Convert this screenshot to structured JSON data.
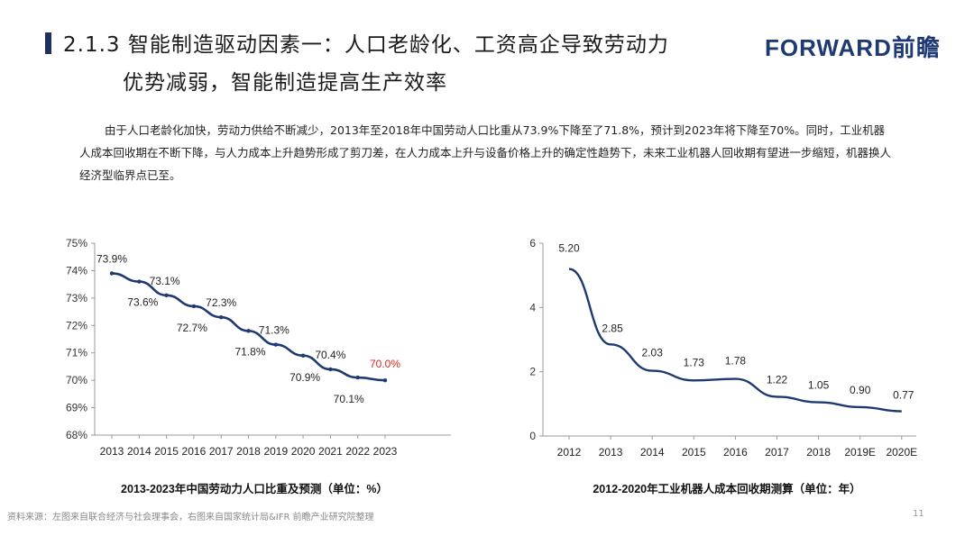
{
  "header": {
    "title_line1": "2.1.3 智能制造驱动因素一：人口老龄化、工资高企导致劳动力",
    "title_line2": "优势减弱，智能制造提高生产效率",
    "logo": "FORWARD前瞻"
  },
  "intro_text": "由于人口老龄化加快，劳动力供给不断减少，2013年至2018年中国劳动人口比重从73.9%下降至了71.8%，预计到2023年将下降至70%。同时，工业机器人成本回收期在不断下降，与人力成本上升趋势形成了剪刀差，在人力成本上升与设备价格上升的确定性趋势下，未来工业机器人回收期有望进一步缩短，机器换人经济型临界点已至。",
  "colors": {
    "series": "#1f3a73",
    "highlight": "#e0211b",
    "title_bar": "#1f2f5e"
  },
  "chart_data": [
    {
      "type": "line",
      "title": "2013-2023年中国劳动力人口比重及预测（单位：%）",
      "xlabel": "",
      "ylabel": "",
      "categories": [
        "2013",
        "2014",
        "2015",
        "2016",
        "2017",
        "2018",
        "2019",
        "2020",
        "2021",
        "2022",
        "2023"
      ],
      "series": [
        {
          "values": [
            73.9,
            73.6,
            73.1,
            72.7,
            72.3,
            71.8,
            71.3,
            70.9,
            70.4,
            70.1,
            70.0
          ]
        }
      ],
      "data_labels": [
        "73.9%",
        "73.6%",
        "73.1%",
        "72.7%",
        "72.3%",
        "71.8%",
        "71.3%",
        "70.9%",
        "70.4%",
        "70.1%",
        "70.0%"
      ],
      "highlighted_label_index": 10,
      "ylim": [
        68,
        75
      ],
      "yticks": [
        68,
        69,
        70,
        71,
        72,
        73,
        74,
        75
      ],
      "ytick_labels": [
        "68%",
        "69%",
        "70%",
        "71%",
        "72%",
        "73%",
        "74%",
        "75%"
      ],
      "grid": false,
      "legend": "none"
    },
    {
      "type": "line",
      "title": "2012-2020年工业机器人成本回收期测算（单位：年）",
      "xlabel": "",
      "ylabel": "",
      "categories": [
        "2012",
        "2013",
        "2014",
        "2015",
        "2016",
        "2017",
        "2018",
        "2019E",
        "2020E"
      ],
      "series": [
        {
          "values": [
            5.2,
            2.85,
            2.03,
            1.73,
            1.78,
            1.22,
            1.05,
            0.9,
            0.77
          ]
        }
      ],
      "data_labels": [
        "5.20",
        "2.85",
        "2.03",
        "1.73",
        "1.78",
        "1.22",
        "1.05",
        "0.90",
        "0.77"
      ],
      "ylim": [
        0,
        6
      ],
      "yticks": [
        0,
        2,
        4,
        6
      ],
      "ytick_labels": [
        "0",
        "2",
        "4",
        "6"
      ],
      "grid": false,
      "legend": "none"
    }
  ],
  "footer": {
    "source": "资料来源：左图来自联合经济与社会理事会，右图来自国家统计局&IFR 前瞻产业研究院整理",
    "page_number": "11"
  }
}
